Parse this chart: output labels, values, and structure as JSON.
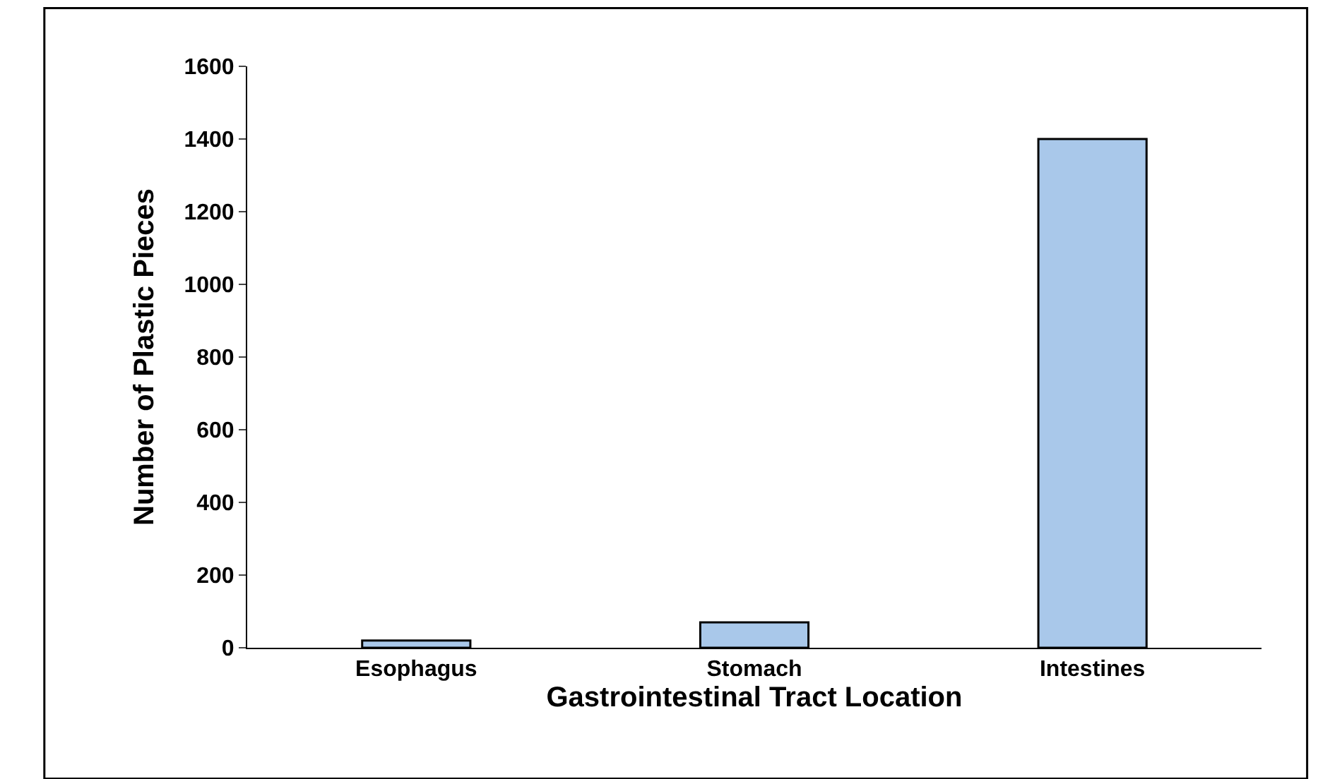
{
  "chart_data": {
    "type": "bar",
    "xlabel": "Gastrointestinal Tract Location",
    "ylabel": "Number of Plastic Pieces",
    "categories": [
      "Esophagus",
      "Stomach",
      "Intestines"
    ],
    "values": [
      20,
      70,
      1400
    ],
    "color": "#a9c8ea",
    "ylim": [
      0,
      1600
    ],
    "yticks": [
      0,
      200,
      400,
      600,
      800,
      1000,
      1200,
      1400,
      1600
    ]
  }
}
